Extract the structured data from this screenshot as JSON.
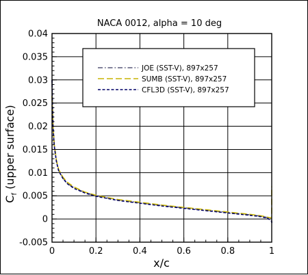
{
  "chart_data": {
    "type": "line",
    "title": "NACA 0012, alpha = 10 deg",
    "xlabel": "x/c",
    "ylabel_main": "C",
    "ylabel_sub": "f",
    "ylabel_rest": " (upper surface)",
    "xlim": [
      0,
      1
    ],
    "ylim": [
      -0.005,
      0.04
    ],
    "xticks": [
      0,
      0.2,
      0.4,
      0.6,
      0.8,
      1
    ],
    "xtick_labels": [
      "0",
      "0.2",
      "0.4",
      "0.6",
      "0.8",
      "1"
    ],
    "yticks": [
      -0.005,
      0,
      0.005,
      0.01,
      0.015,
      0.02,
      0.025,
      0.03,
      0.035,
      0.04
    ],
    "ytick_labels": [
      "-0.005",
      "0",
      "0.005",
      "0.01",
      "0.015",
      "0.02",
      "0.025",
      "0.03",
      "0.035",
      "0.04"
    ],
    "grid": true,
    "legend_position": "top-center",
    "series": [
      {
        "name": "JOE (SST-V), 897x257",
        "color": "#555577",
        "dash": "dashdot",
        "x": [
          0,
          0.002,
          0.005,
          0.01,
          0.02,
          0.03,
          0.05,
          0.07,
          0.1,
          0.15,
          0.2,
          0.3,
          0.4,
          0.5,
          0.6,
          0.7,
          0.8,
          0.9,
          0.95,
          0.98,
          1.0
        ],
        "y": [
          0.03,
          0.025,
          0.02,
          0.016,
          0.0125,
          0.0105,
          0.0088,
          0.0077,
          0.0067,
          0.0057,
          0.005,
          0.0041,
          0.0035,
          0.0029,
          0.0024,
          0.0019,
          0.0014,
          0.0009,
          0.0006,
          0.0003,
          0.0
        ]
      },
      {
        "name": "SUMB (SST-V), 897x257",
        "color": "#c8b400",
        "dash": "dash",
        "x": [
          0,
          0.002,
          0.005,
          0.01,
          0.02,
          0.03,
          0.05,
          0.07,
          0.1,
          0.15,
          0.2,
          0.3,
          0.4,
          0.5,
          0.6,
          0.7,
          0.8,
          0.9,
          0.95,
          0.98,
          0.999,
          1.0,
          1.0
        ],
        "y": [
          0.0265,
          0.024,
          0.0198,
          0.0162,
          0.0127,
          0.0107,
          0.009,
          0.0079,
          0.0069,
          0.0058,
          0.0051,
          0.0042,
          0.0036,
          0.003,
          0.0025,
          0.002,
          0.0015,
          0.001,
          0.0007,
          0.0004,
          0.0002,
          0.0015,
          0.007
        ]
      },
      {
        "name": "CFL3D (SST-V), 897x257",
        "color": "#000066",
        "dash": "shortdash",
        "x": [
          0,
          0.002,
          0.005,
          0.01,
          0.02,
          0.03,
          0.05,
          0.07,
          0.1,
          0.15,
          0.2,
          0.3,
          0.4,
          0.5,
          0.6,
          0.7,
          0.8,
          0.9,
          0.95,
          0.98,
          1.0,
          1.0
        ],
        "y": [
          0.03,
          0.0245,
          0.0195,
          0.0158,
          0.0124,
          0.0104,
          0.0087,
          0.0076,
          0.0066,
          0.0056,
          0.0049,
          0.004,
          0.0034,
          0.0028,
          0.0023,
          0.0018,
          0.0013,
          0.0008,
          0.0005,
          0.0002,
          -0.0005,
          -0.001
        ]
      }
    ]
  }
}
